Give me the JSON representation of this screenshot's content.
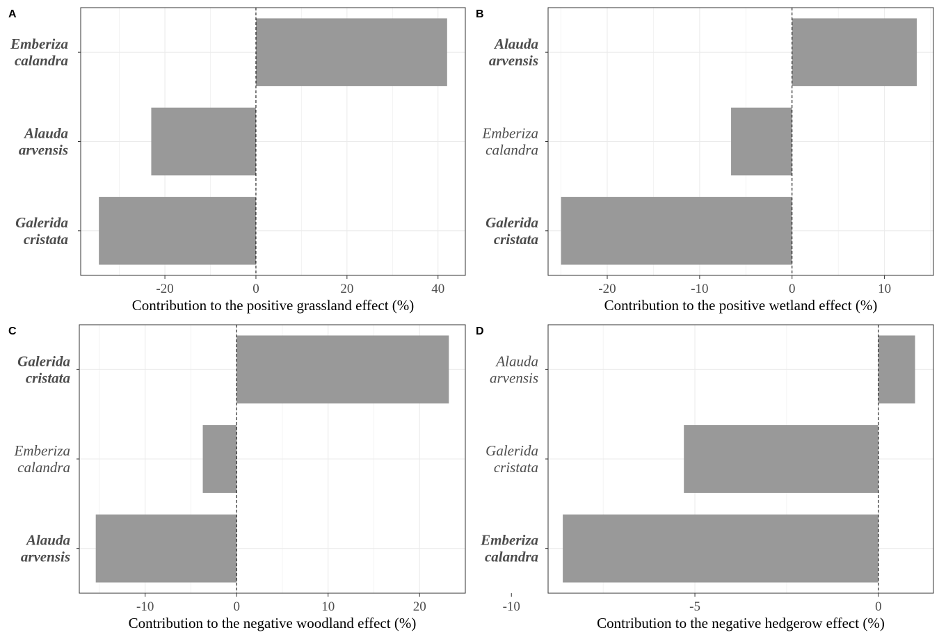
{
  "chart_data": [
    {
      "type": "bar",
      "orientation": "horizontal",
      "panel_label": "A",
      "xlabel": "Contribution to the positive grassland effect (%)",
      "categories": [
        {
          "line1": "Emberiza",
          "line2": "calandra",
          "bold": true
        },
        {
          "line1": "Alauda",
          "line2": "arvensis",
          "bold": true
        },
        {
          "line1": "Galerida",
          "line2": "cristata",
          "bold": true
        }
      ],
      "values": [
        42,
        -23,
        -34.5
      ],
      "xlim": [
        -38.5,
        46
      ],
      "xticks": [
        -20,
        0,
        20,
        40
      ],
      "xtick_labels": [
        "-20",
        "0",
        "20",
        "40"
      ],
      "bar_color": "#999999",
      "reference_line": 0,
      "grid": true
    },
    {
      "type": "bar",
      "orientation": "horizontal",
      "panel_label": "B",
      "xlabel": "Contribution to the positive wetland effect (%)",
      "categories": [
        {
          "line1": "Alauda",
          "line2": "arvensis",
          "bold": true
        },
        {
          "line1": "Emberiza",
          "line2": "calandra",
          "bold": false
        },
        {
          "line1": "Galerida",
          "line2": "cristata",
          "bold": true
        }
      ],
      "values": [
        13.5,
        -6.6,
        -25
      ],
      "xlim": [
        -26.4,
        15.3
      ],
      "xticks": [
        -20,
        -10,
        0,
        10
      ],
      "xtick_labels": [
        "-20",
        "-10",
        "0",
        "10"
      ],
      "bar_color": "#999999",
      "reference_line": 0,
      "grid": true
    },
    {
      "type": "bar",
      "orientation": "horizontal",
      "panel_label": "C",
      "xlabel": "Contribution to the negative woodland effect (%)",
      "categories": [
        {
          "line1": "Galerida",
          "line2": "cristata",
          "bold": true
        },
        {
          "line1": "Emberiza",
          "line2": "calandra",
          "bold": false
        },
        {
          "line1": "Alauda",
          "line2": "arvensis",
          "bold": true
        }
      ],
      "values": [
        23.2,
        -3.7,
        -15.4
      ],
      "xlim": [
        -17.2,
        25
      ],
      "xticks": [
        -10,
        0,
        10,
        20
      ],
      "xtick_labels": [
        "-10",
        "0",
        "10",
        "20"
      ],
      "bar_color": "#999999",
      "reference_line": 0,
      "grid": true
    },
    {
      "type": "bar",
      "orientation": "horizontal",
      "panel_label": "D",
      "xlabel": "Contribution to the negative hedgerow effect (%)",
      "categories": [
        {
          "line1": "Alauda",
          "line2": "arvensis",
          "bold": false
        },
        {
          "line1": "Galerida",
          "line2": "cristata",
          "bold": false
        },
        {
          "line1": "Emberiza",
          "line2": "calandra",
          "bold": true
        }
      ],
      "values": [
        1,
        -5.3,
        -8.6
      ],
      "xlim": [
        -9,
        1.5
      ],
      "xticks": [
        -10,
        -5,
        0
      ],
      "xtick_labels": [
        "-10",
        "-5",
        "0"
      ],
      "bar_color": "#999999",
      "reference_line": 0,
      "grid": true
    }
  ]
}
